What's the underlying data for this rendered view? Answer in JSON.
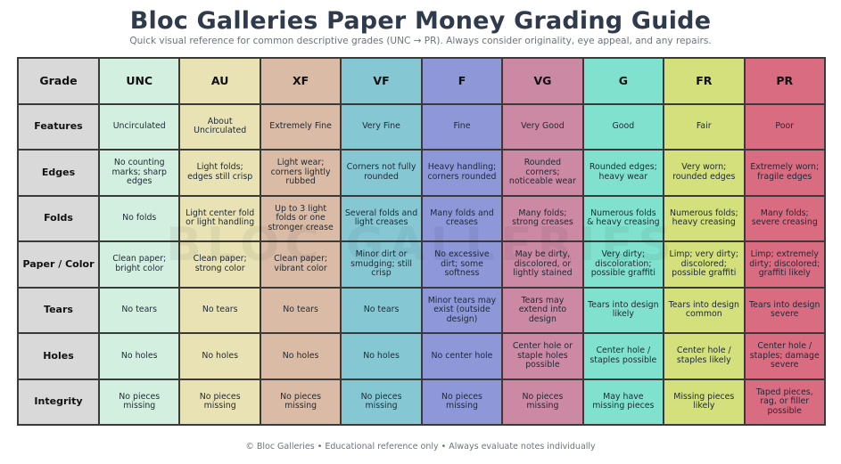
{
  "header": {
    "title": "Bloc Galleries Paper Money Grading Guide",
    "subtitle": "Quick visual reference for common descriptive grades (UNC → PR). Always consider originality, eye appeal, and any repairs."
  },
  "watermark": "BLOC GALLERIES",
  "table": {
    "corner_label": "Grade",
    "grades": [
      {
        "code": "UNC",
        "color": "#d3efdf"
      },
      {
        "code": "AU",
        "color": "#e8e2b5"
      },
      {
        "code": "XF",
        "color": "#d9bba6"
      },
      {
        "code": "VF",
        "color": "#85c8d4"
      },
      {
        "code": "F",
        "color": "#8e97d8"
      },
      {
        "code": "VG",
        "color": "#cb89a4"
      },
      {
        "code": "G",
        "color": "#80e2ce"
      },
      {
        "code": "FR",
        "color": "#d3e07b"
      },
      {
        "code": "PR",
        "color": "#da6c82"
      }
    ],
    "header_color": "#d9d9d9",
    "rows": [
      {
        "label": "Features",
        "cells": [
          "Uncirculated",
          "About Uncirculated",
          "Extremely Fine",
          "Very Fine",
          "Fine",
          "Very Good",
          "Good",
          "Fair",
          "Poor"
        ]
      },
      {
        "label": "Edges",
        "cells": [
          "No counting marks; sharp edges",
          "Light folds; edges still crisp",
          "Light wear; corners lightly rubbed",
          "Corners not fully rounded",
          "Heavy handling; corners rounded",
          "Rounded corners; noticeable wear",
          "Rounded edges; heavy wear",
          "Very worn; rounded edges",
          "Extremely worn; fragile edges"
        ]
      },
      {
        "label": "Folds",
        "cells": [
          "No folds",
          "Light center fold or light handling",
          "Up to 3 light folds or one stronger crease",
          "Several folds and light creases",
          "Many folds and creases",
          "Many folds; strong creases",
          "Numerous folds & heavy creasing",
          "Numerous folds; heavy creasing",
          "Many folds; severe creasing"
        ]
      },
      {
        "label": "Paper / Color",
        "cells": [
          "Clean paper; bright color",
          "Clean paper; strong color",
          "Clean paper; vibrant color",
          "Minor dirt or smudging; still crisp",
          "No excessive dirt; some softness",
          "May be dirty, discolored, or lightly stained",
          "Very dirty; discoloration; possible graffiti",
          "Limp; very dirty; discolored; possible graffiti",
          "Limp; extremely dirty; discolored; graffiti likely"
        ]
      },
      {
        "label": "Tears",
        "cells": [
          "No tears",
          "No tears",
          "No tears",
          "No tears",
          "Minor tears may exist (outside design)",
          "Tears may extend into design",
          "Tears into design likely",
          "Tears into design common",
          "Tears into design severe"
        ]
      },
      {
        "label": "Holes",
        "cells": [
          "No holes",
          "No holes",
          "No holes",
          "No holes",
          "No center hole",
          "Center hole or staple holes possible",
          "Center hole / staples possible",
          "Center hole / staples likely",
          "Center hole / staples; damage severe"
        ]
      },
      {
        "label": "Integrity",
        "cells": [
          "No pieces missing",
          "No pieces missing",
          "No pieces missing",
          "No pieces missing",
          "No pieces missing",
          "No pieces missing",
          "May have missing pieces",
          "Missing pieces likely",
          "Taped pieces, rag, or filler possible"
        ]
      }
    ]
  },
  "footer": "© Bloc Galleries • Educational reference only • Always evaluate notes individually"
}
